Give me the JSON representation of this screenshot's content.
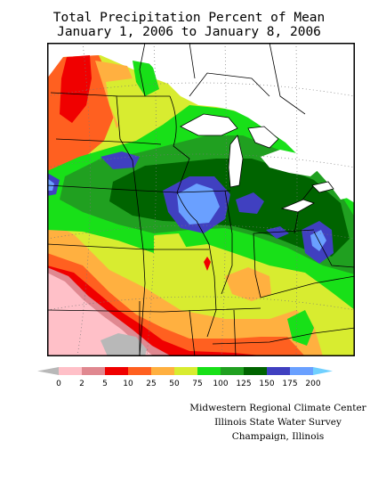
{
  "title": {
    "line1": "Total Precipitation Percent of Mean",
    "line2": "January 1, 2006 to January 8, 2006"
  },
  "legend": {
    "ticks": [
      "0",
      "2",
      "5",
      "10",
      "25",
      "50",
      "75",
      "100",
      "125",
      "150",
      "175",
      "200"
    ],
    "colors": [
      "#b8b8b8",
      "#ffc0c8",
      "#e08890",
      "#f00000",
      "#ff6020",
      "#ffb040",
      "#d8ec30",
      "#18e018",
      "#20a020",
      "#006400",
      "#4040c0",
      "#6aa0ff",
      "#70d0ff"
    ]
  },
  "credits": {
    "line1": "Midwestern Regional Climate Center",
    "line2": "Illinois State Water Survey",
    "line3": "Champaign, Illinois"
  }
}
